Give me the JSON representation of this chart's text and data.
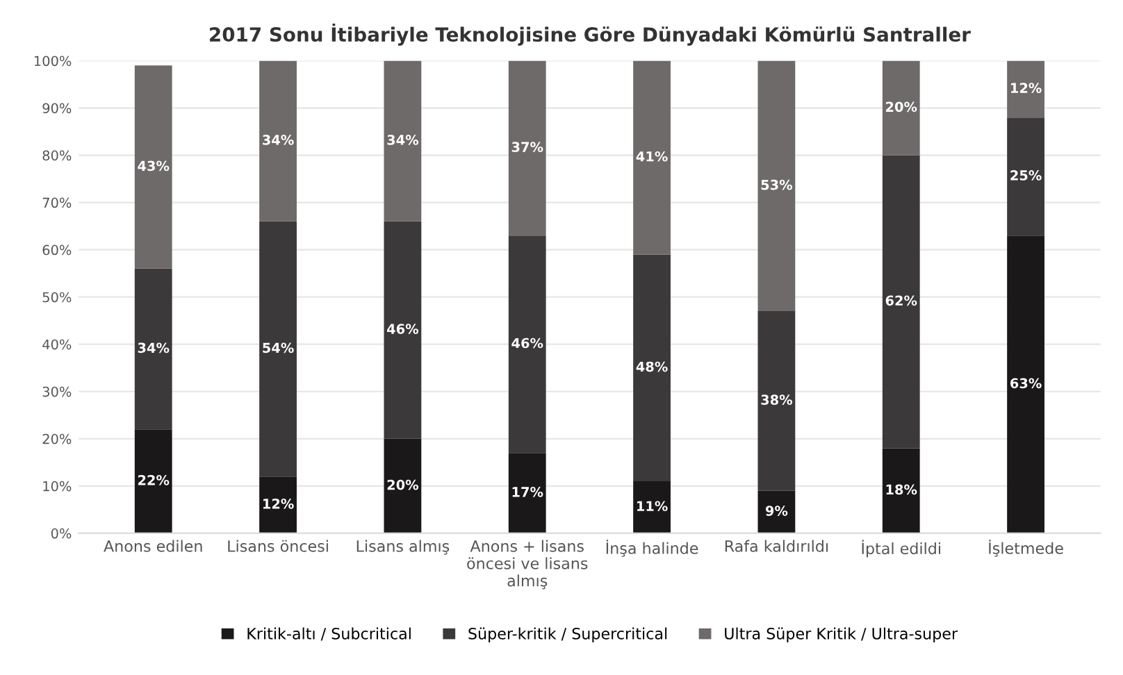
{
  "chart_data": {
    "type": "bar",
    "stacked": true,
    "title": "2017 Sonu İtibariyle Teknolojisine Göre Dünyadaki Kömürlü Santraller",
    "categories": [
      "Anons edilen",
      "Lisans öncesi",
      "Lisans almış",
      "Anons + lisans öncesi ve lisans almış",
      "İnşa halinde",
      "Rafa kaldırıldı",
      "İptal edildi",
      "İşletmede"
    ],
    "series": [
      {
        "name": "Kritik-altı / Subcritical",
        "color": "#1a1818",
        "values": [
          22,
          12,
          20,
          17,
          11,
          9,
          18,
          63
        ],
        "value_labels": [
          "22%",
          "12%",
          "20%",
          "17%",
          "11%",
          "9%",
          "18%",
          "63%"
        ]
      },
      {
        "name": "Süper-kritik / Supercritical",
        "color": "#3b3939",
        "values": [
          34,
          54,
          46,
          46,
          48,
          38,
          62,
          25
        ],
        "value_labels": [
          "34%",
          "54%",
          "46%",
          "46%",
          "48%",
          "38%",
          "62%",
          "25%"
        ]
      },
      {
        "name": "Ultra Süper Kritik / Ultra-super",
        "color": "#6e6a6a",
        "values": [
          43,
          34,
          34,
          37,
          41,
          53,
          20,
          12
        ],
        "value_labels": [
          "43%",
          "34%",
          "34%",
          "37%",
          "41%",
          "53%",
          "20%",
          "12%"
        ]
      }
    ],
    "ylim": [
      0,
      100
    ],
    "yticks": [
      {
        "value": 0,
        "label": "0%"
      },
      {
        "value": 10,
        "label": "10%"
      },
      {
        "value": 20,
        "label": "20%"
      },
      {
        "value": 30,
        "label": "30%"
      },
      {
        "value": 40,
        "label": "40%"
      },
      {
        "value": 50,
        "label": "50%"
      },
      {
        "value": 60,
        "label": "60%"
      },
      {
        "value": 70,
        "label": "70%"
      },
      {
        "value": 80,
        "label": "80%"
      },
      {
        "value": 90,
        "label": "90%"
      },
      {
        "value": 100,
        "label": "100%"
      }
    ],
    "grid": "y",
    "legend": "bottom"
  }
}
